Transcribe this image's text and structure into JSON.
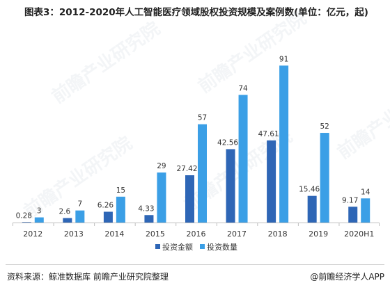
{
  "header": {
    "title": "图表3：2012-2020年人工智能医疗领域股权投资规模及案例数(单位：亿元，起)"
  },
  "footer": {
    "source": "资料来源：鲸准数据库 前瞻产业研究院整理",
    "brand": "@前瞻经济学人APP"
  },
  "watermark": {
    "text": "前瞻产业研究院"
  },
  "colors": {
    "amount": "#2e66b6",
    "count": "#3b9fe6",
    "axis": "#bfbfbf",
    "label": "#333333"
  },
  "chart_data": {
    "type": "bar",
    "categories": [
      "2012",
      "2013",
      "2014",
      "2015",
      "2016",
      "2017",
      "2018",
      "2019",
      "2020H1"
    ],
    "series": [
      {
        "name": "投资金额",
        "values": [
          0.28,
          2.6,
          6.26,
          4.33,
          27.42,
          42.56,
          47.61,
          15.46,
          9.17
        ],
        "labels": [
          "0.28",
          "2.6",
          "6.26",
          "4.33",
          "27.42",
          "42.56",
          "47.61",
          "15.46",
          "9.17"
        ]
      },
      {
        "name": "投资数量",
        "values": [
          3,
          7,
          15,
          29,
          57,
          74,
          91,
          52,
          14
        ],
        "labels": [
          "3",
          "7",
          "15",
          "29",
          "57",
          "74",
          "91",
          "52",
          "14"
        ]
      }
    ],
    "ylim": [
      0,
      100
    ],
    "grid": false,
    "legend_position": "bottom"
  }
}
